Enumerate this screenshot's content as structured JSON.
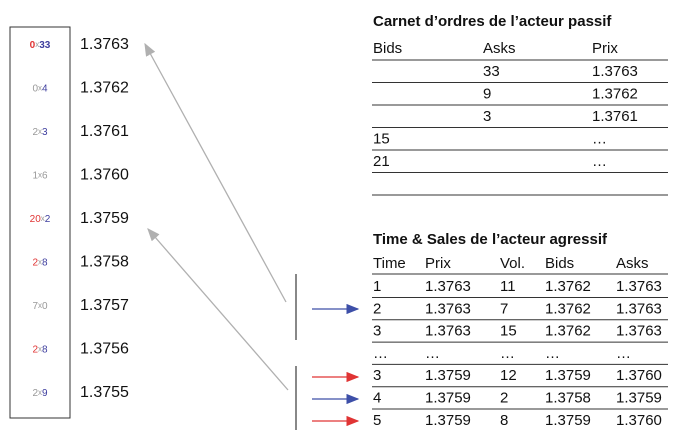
{
  "ladder": {
    "separator": "x",
    "rows": [
      {
        "bid": "0",
        "ask": "33",
        "price": "1.3763",
        "bid_color": "#e03434",
        "ask_color": "#3d3d9e",
        "strong": true
      },
      {
        "bid": "0",
        "ask": "4",
        "price": "1.3762",
        "bid_color": "#999999",
        "ask_color": "#3d3d9e",
        "strong": false
      },
      {
        "bid": "2",
        "ask": "3",
        "price": "1.3761",
        "bid_color": "#999999",
        "ask_color": "#3d3d9e",
        "strong": false
      },
      {
        "bid": "1",
        "ask": "6",
        "price": "1.3760",
        "bid_color": "#999999",
        "ask_color": "#999999",
        "strong": false
      },
      {
        "bid": "20",
        "ask": "2",
        "price": "1.3759",
        "bid_color": "#e03434",
        "ask_color": "#3d3d9e",
        "strong": false
      },
      {
        "bid": "2",
        "ask": "8",
        "price": "1.3758",
        "bid_color": "#e03434",
        "ask_color": "#3d3d9e",
        "strong": false
      },
      {
        "bid": "7",
        "ask": "0",
        "price": "1.3757",
        "bid_color": "#999999",
        "ask_color": "#999999",
        "strong": false
      },
      {
        "bid": "2",
        "ask": "8",
        "price": "1.3756",
        "bid_color": "#e03434",
        "ask_color": "#3d3d9e",
        "strong": false
      },
      {
        "bid": "2",
        "ask": "9",
        "price": "1.3755",
        "bid_color": "#999999",
        "ask_color": "#3d3d9e",
        "strong": false
      }
    ]
  },
  "order_book": {
    "title": "Carnet d’ordres de l’acteur passif",
    "headers": [
      "Bids",
      "Asks",
      "Prix"
    ],
    "rows": [
      [
        null,
        "33",
        "1.3763"
      ],
      [
        null,
        "9",
        "1.3762"
      ],
      [
        null,
        "3",
        "1.3761"
      ],
      [
        "15",
        null,
        "…"
      ],
      [
        "21",
        null,
        "…"
      ]
    ]
  },
  "time_sales": {
    "title": "Time & Sales de l’acteur agressif",
    "headers": [
      "Time",
      "Prix",
      "Vol.",
      "Bids",
      "Asks"
    ],
    "rows": [
      [
        "1",
        "1.3763",
        "11",
        "1.3762",
        "1.3763"
      ],
      [
        "2",
        "1.3763",
        "7",
        "1.3762",
        "1.3763"
      ],
      [
        "3",
        "1.3763",
        "15",
        "1.3762",
        "1.3763"
      ],
      [
        "…",
        "…",
        "…",
        "…",
        "…"
      ],
      [
        "3",
        "1.3759",
        "12",
        "1.3759",
        "1.3760"
      ],
      [
        "4",
        "1.3759",
        "2",
        "1.3758",
        "1.3759"
      ],
      [
        "5",
        "1.3759",
        "8",
        "1.3759",
        "1.3760"
      ]
    ]
  }
}
